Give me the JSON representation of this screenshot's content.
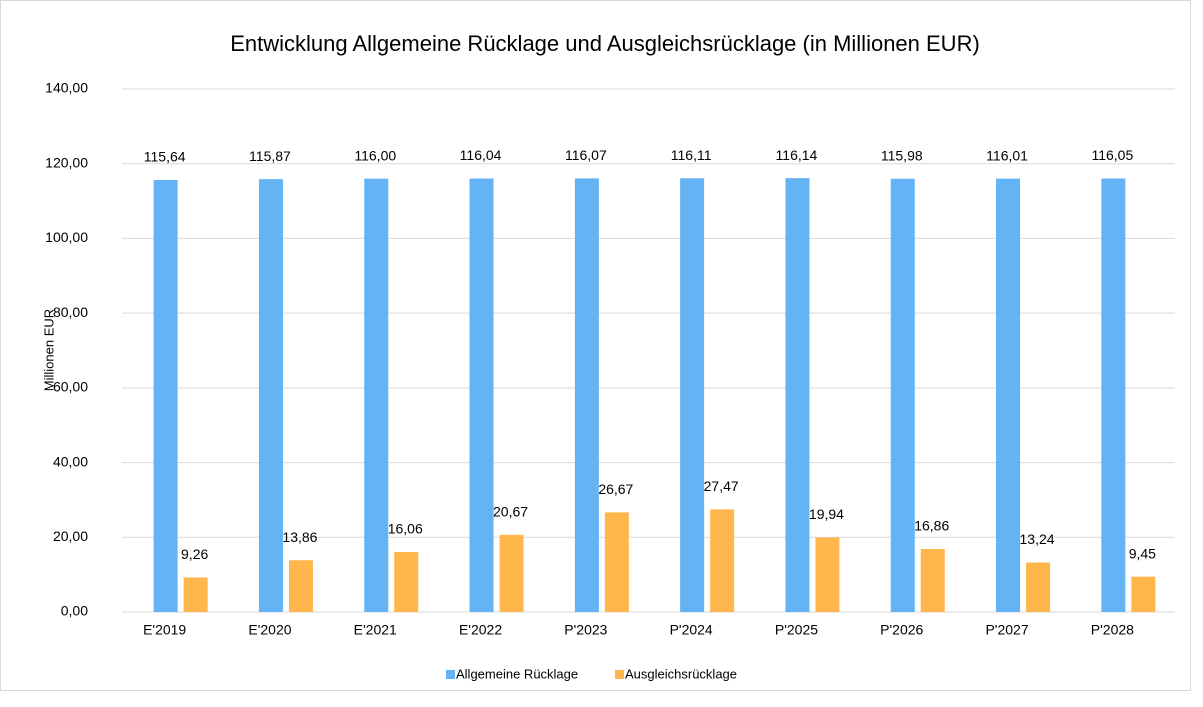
{
  "chart_data": {
    "type": "bar",
    "title": "Entwicklung Allgemeine Rücklage und Ausgleichsrücklage (in Millionen EUR)",
    "y_label": "Millionen EUR",
    "categories": [
      "E'2019",
      "E'2020",
      "E'2021",
      "E'2022",
      "P'2023",
      "P'2024",
      "P'2025",
      "P'2026",
      "P'2027",
      "P'2028"
    ],
    "series": [
      {
        "name": "Allgemeine Rücklage",
        "color": "#63b3f5",
        "values": [
          115.64,
          115.87,
          116.0,
          116.04,
          116.07,
          116.11,
          116.14,
          115.98,
          116.01,
          116.05
        ],
        "value_labels": [
          "115,64",
          "115,87",
          "116,00",
          "116,04",
          "116,07",
          "116,11",
          "116,14",
          "115,98",
          "116,01",
          "116,05"
        ]
      },
      {
        "name": "Ausgleichsrücklage",
        "color": "#ffb74d",
        "values": [
          9.26,
          13.86,
          16.06,
          20.67,
          26.67,
          27.47,
          19.94,
          16.86,
          13.24,
          9.45
        ],
        "value_labels": [
          "9,26",
          "13,86",
          "16,06",
          "20,67",
          "26,67",
          "27,47",
          "19,94",
          "16,86",
          "13,24",
          "9,45"
        ]
      }
    ],
    "ylim": [
      0,
      140
    ],
    "yticks": [
      {
        "value": 0,
        "label": "0,00"
      },
      {
        "value": 20,
        "label": "20,00"
      },
      {
        "value": 40,
        "label": "40,00"
      },
      {
        "value": 60,
        "label": "60,00"
      },
      {
        "value": 80,
        "label": "80,00"
      },
      {
        "value": 100,
        "label": "100,00"
      },
      {
        "value": 120,
        "label": "120,00"
      },
      {
        "value": 140,
        "label": "140,00"
      }
    ],
    "grid": true,
    "legend": "bottom"
  }
}
